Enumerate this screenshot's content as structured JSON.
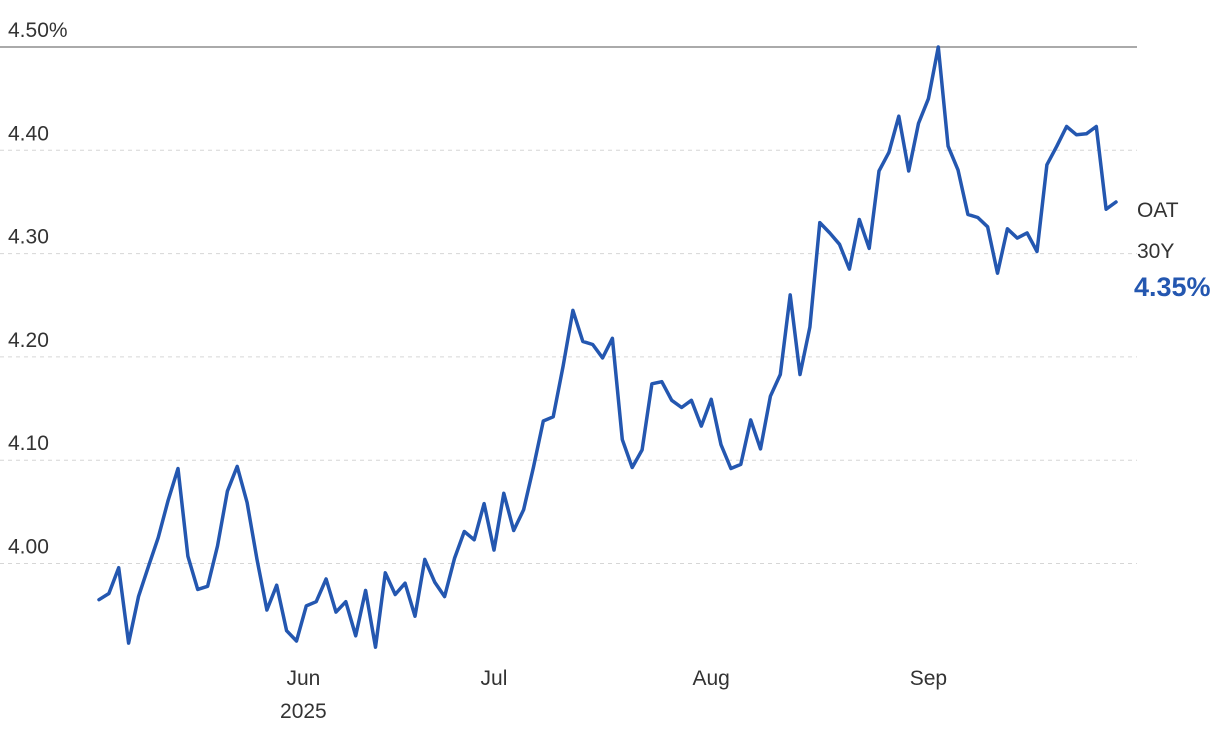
{
  "chart_data": {
    "type": "line",
    "series": [
      {
        "name": "OAT 30Y",
        "color": "#2457b0",
        "values": [
          3.965,
          3.971,
          3.996,
          3.923,
          3.968,
          3.997,
          4.025,
          4.061,
          4.092,
          4.007,
          3.975,
          3.978,
          4.017,
          4.07,
          4.094,
          4.059,
          4.004,
          3.955,
          3.979,
          3.935,
          3.925,
          3.959,
          3.963,
          3.985,
          3.953,
          3.963,
          3.93,
          3.974,
          3.919,
          3.991,
          3.97,
          3.981,
          3.949,
          4.004,
          3.982,
          3.968,
          4.005,
          4.031,
          4.023,
          4.058,
          4.013,
          4.068,
          4.032,
          4.052,
          4.093,
          4.138,
          4.142,
          4.191,
          4.245,
          4.215,
          4.212,
          4.199,
          4.218,
          4.12,
          4.093,
          4.11,
          4.174,
          4.176,
          4.158,
          4.151,
          4.158,
          4.133,
          4.159,
          4.115,
          4.092,
          4.096,
          4.139,
          4.111,
          4.162,
          4.183,
          4.26,
          4.183,
          4.229,
          4.33,
          4.32,
          4.309,
          4.285,
          4.333,
          4.305,
          4.38,
          4.398,
          4.433,
          4.38,
          4.426,
          4.45,
          4.5,
          4.404,
          4.381,
          4.338,
          4.335,
          4.326,
          4.281,
          4.324,
          4.315,
          4.32,
          4.302,
          4.386,
          4.404,
          4.423,
          4.415,
          4.416,
          4.423,
          4.343,
          4.35
        ]
      }
    ],
    "last_label": "4.35%",
    "xlim": [
      0,
      103
    ],
    "xticks": [
      {
        "value": 20.7,
        "label": "Jun"
      },
      {
        "value": 40,
        "label": "Jul"
      },
      {
        "value": 62,
        "label": "Aug"
      },
      {
        "value": 84,
        "label": "Sep"
      }
    ],
    "year_label": "2025",
    "ylim": [
      3.91,
      4.5
    ],
    "yticks": [
      {
        "value": 4.0,
        "label": "4.00"
      },
      {
        "value": 4.1,
        "label": "4.10"
      },
      {
        "value": 4.2,
        "label": "4.20"
      },
      {
        "value": 4.3,
        "label": "4.30"
      },
      {
        "value": 4.4,
        "label": "4.40"
      },
      {
        "value": 4.5,
        "label": "4.50%"
      }
    ],
    "grid": true
  }
}
